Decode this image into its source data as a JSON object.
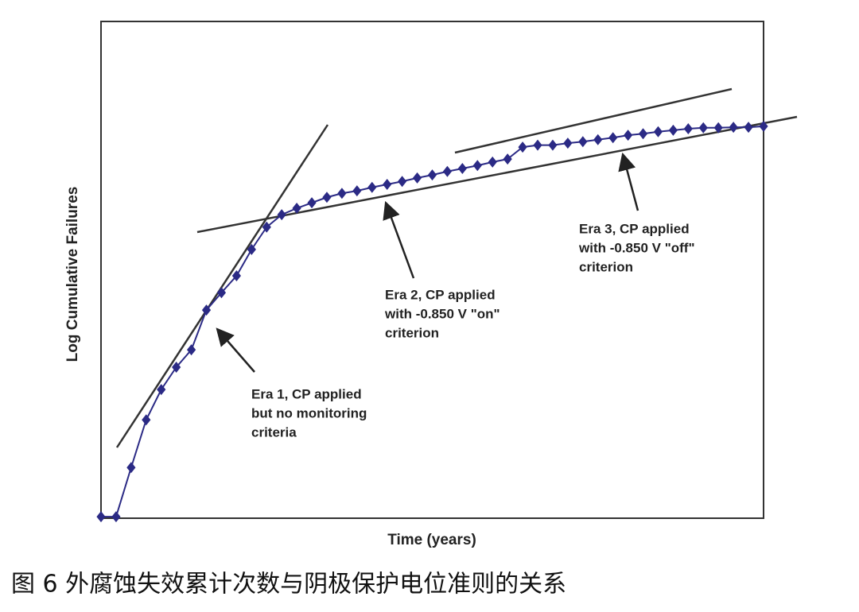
{
  "chart_data": {
    "type": "line",
    "x_label": "Time (years)",
    "y_label": "Log Cumulative Failures",
    "x": [
      0,
      1,
      2,
      3,
      4,
      5,
      6,
      7,
      8,
      9,
      10,
      11,
      12,
      13,
      14,
      15,
      16,
      17,
      18,
      19,
      20,
      21,
      22,
      23,
      24,
      25,
      26,
      27,
      28,
      29,
      30,
      31,
      32,
      33,
      34,
      35,
      36,
      37,
      38,
      39,
      40,
      41,
      42,
      43,
      44
    ],
    "xlim": [
      0,
      44
    ],
    "ylim": [
      0,
      100
    ],
    "series": [
      {
        "color": "#2b2a85",
        "values": [
          0.3,
          0.3,
          10.2,
          19.8,
          25.9,
          30.4,
          33.9,
          41.9,
          45.4,
          48.8,
          54.1,
          58.6,
          61.1,
          62.4,
          63.5,
          64.6,
          65.4,
          65.9,
          66.6,
          67.2,
          67.8,
          68.5,
          69.1,
          69.8,
          70.4,
          71.0,
          71.7,
          72.3,
          74.7,
          75.1,
          75.1,
          75.5,
          75.8,
          76.2,
          76.6,
          77.1,
          77.4,
          77.8,
          78.1,
          78.4,
          78.6,
          78.6,
          78.7,
          78.7,
          78.9
        ]
      }
    ],
    "annotations": [
      {
        "lines": [
          "Era 1, CP applied",
          "but no monitoring",
          "criteria"
        ]
      },
      {
        "lines": [
          "Era 2, CP applied",
          "with -0.850 V \"on\"",
          "criterion"
        ]
      },
      {
        "lines": [
          "Era 3, CP applied",
          "with -0.850 V \"off\"",
          "criterion"
        ]
      }
    ],
    "caption": "图 6  外腐蚀失效累计次数与阴极保护电位准则的关系"
  }
}
